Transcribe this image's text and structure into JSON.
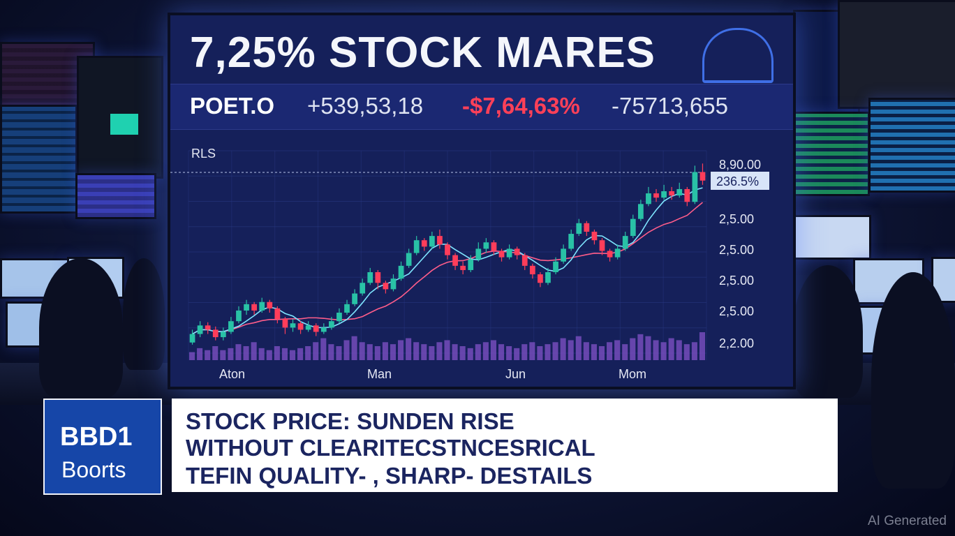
{
  "screen": {
    "headline": "7,25% STOCK MARES",
    "ticker": {
      "symbol": "POET.O",
      "value": "+539,53,18",
      "change": "-$7,64,63%",
      "volume": "-75713,655"
    }
  },
  "chart_data": {
    "type": "line",
    "panel_label": "RLS",
    "x_tick_labels": [
      "Aton",
      "Man",
      "Jun",
      "Mom"
    ],
    "y_tick_labels": [
      "8,90.00",
      "236.5%",
      "2,5.00",
      "2,5.00",
      "2,5.00",
      "2,5.00",
      "2,2.00"
    ],
    "current_value_label": "236.5%",
    "candles": [
      [
        2.1,
        2.18,
        2.22,
        2.08
      ],
      [
        2.18,
        2.26,
        2.3,
        2.15
      ],
      [
        2.26,
        2.22,
        2.29,
        2.18
      ],
      [
        2.22,
        2.15,
        2.25,
        2.12
      ],
      [
        2.15,
        2.2,
        2.24,
        2.12
      ],
      [
        2.2,
        2.3,
        2.34,
        2.18
      ],
      [
        2.3,
        2.4,
        2.44,
        2.28
      ],
      [
        2.4,
        2.46,
        2.5,
        2.36
      ],
      [
        2.46,
        2.4,
        2.48,
        2.36
      ],
      [
        2.4,
        2.48,
        2.52,
        2.38
      ],
      [
        2.48,
        2.42,
        2.5,
        2.38
      ],
      [
        2.42,
        2.32,
        2.44,
        2.28
      ],
      [
        2.32,
        2.24,
        2.34,
        2.18
      ],
      [
        2.24,
        2.28,
        2.32,
        2.2
      ],
      [
        2.28,
        2.22,
        2.3,
        2.18
      ],
      [
        2.22,
        2.26,
        2.3,
        2.2
      ],
      [
        2.26,
        2.2,
        2.28,
        2.16
      ],
      [
        2.2,
        2.24,
        2.28,
        2.18
      ],
      [
        2.24,
        2.3,
        2.34,
        2.22
      ],
      [
        2.3,
        2.38,
        2.42,
        2.28
      ],
      [
        2.38,
        2.46,
        2.5,
        2.36
      ],
      [
        2.46,
        2.56,
        2.6,
        2.44
      ],
      [
        2.56,
        2.66,
        2.7,
        2.54
      ],
      [
        2.66,
        2.76,
        2.8,
        2.64
      ],
      [
        2.76,
        2.66,
        2.78,
        2.6
      ],
      [
        2.66,
        2.6,
        2.68,
        2.56
      ],
      [
        2.6,
        2.7,
        2.74,
        2.58
      ],
      [
        2.7,
        2.82,
        2.86,
        2.68
      ],
      [
        2.82,
        2.94,
        2.98,
        2.8
      ],
      [
        2.94,
        3.06,
        3.1,
        2.92
      ],
      [
        3.06,
        3.0,
        3.08,
        2.96
      ],
      [
        3.0,
        3.1,
        3.14,
        2.98
      ],
      [
        3.1,
        3.02,
        3.16,
        2.98
      ],
      [
        3.02,
        2.92,
        3.04,
        2.88
      ],
      [
        2.92,
        2.82,
        2.94,
        2.78
      ],
      [
        2.82,
        2.78,
        2.86,
        2.74
      ],
      [
        2.78,
        2.88,
        2.92,
        2.76
      ],
      [
        2.88,
        2.98,
        3.04,
        2.86
      ],
      [
        2.98,
        3.04,
        3.08,
        2.94
      ],
      [
        3.04,
        2.96,
        3.06,
        2.92
      ],
      [
        2.96,
        2.9,
        2.98,
        2.86
      ],
      [
        2.9,
        2.98,
        3.02,
        2.88
      ],
      [
        2.98,
        2.92,
        3.0,
        2.88
      ],
      [
        2.92,
        2.82,
        2.94,
        2.78
      ],
      [
        2.82,
        2.74,
        2.84,
        2.7
      ],
      [
        2.74,
        2.66,
        2.76,
        2.62
      ],
      [
        2.66,
        2.76,
        2.8,
        2.64
      ],
      [
        2.76,
        2.86,
        2.9,
        2.74
      ],
      [
        2.86,
        2.98,
        3.02,
        2.84
      ],
      [
        2.98,
        3.12,
        3.16,
        2.96
      ],
      [
        3.12,
        3.22,
        3.26,
        3.1
      ],
      [
        3.22,
        3.14,
        3.24,
        3.1
      ],
      [
        3.14,
        3.06,
        3.16,
        3.02
      ],
      [
        3.06,
        2.96,
        3.08,
        2.92
      ],
      [
        2.96,
        2.9,
        2.98,
        2.86
      ],
      [
        2.9,
        2.98,
        3.02,
        2.88
      ],
      [
        2.98,
        3.1,
        3.14,
        2.96
      ],
      [
        3.1,
        3.26,
        3.3,
        3.08
      ],
      [
        3.26,
        3.4,
        3.44,
        3.24
      ],
      [
        3.4,
        3.5,
        3.56,
        3.38
      ],
      [
        3.5,
        3.46,
        3.54,
        3.42
      ],
      [
        3.46,
        3.52,
        3.58,
        3.44
      ],
      [
        3.52,
        3.48,
        3.56,
        3.44
      ],
      [
        3.48,
        3.54,
        3.6,
        3.46
      ],
      [
        3.54,
        3.42,
        3.56,
        3.38
      ],
      [
        3.42,
        3.7,
        3.76,
        3.4
      ],
      [
        3.7,
        3.62,
        3.78,
        3.58
      ]
    ],
    "volume": [
      4,
      6,
      5,
      7,
      5,
      6,
      8,
      7,
      9,
      6,
      5,
      7,
      6,
      5,
      6,
      7,
      9,
      11,
      8,
      7,
      10,
      12,
      9,
      8,
      7,
      9,
      8,
      10,
      11,
      9,
      8,
      7,
      9,
      10,
      8,
      7,
      6,
      8,
      9,
      10,
      8,
      7,
      6,
      8,
      9,
      7,
      8,
      9,
      11,
      10,
      12,
      9,
      8,
      7,
      9,
      10,
      8,
      11,
      13,
      12,
      10,
      9,
      11,
      10,
      8,
      9,
      14
    ],
    "colors": {
      "up": "#29c2a6",
      "down": "#ff3d5a",
      "volume": "#7a4fc0",
      "ma_fast": "#7fe6ff",
      "ma_slow": "#ff5d8a",
      "grid": "#2a3a86"
    }
  },
  "lower_third": {
    "brand_code": "BBD1",
    "brand_name": "Boorts",
    "caption_lines": [
      "STOCK PRICE: SUNDEN RISE",
      "WITHOUT CLEARITECSTNCESRICAL",
      "TEFIN QUALITY- , SHARP- DESTAILS"
    ]
  },
  "watermark": "AI Generated"
}
